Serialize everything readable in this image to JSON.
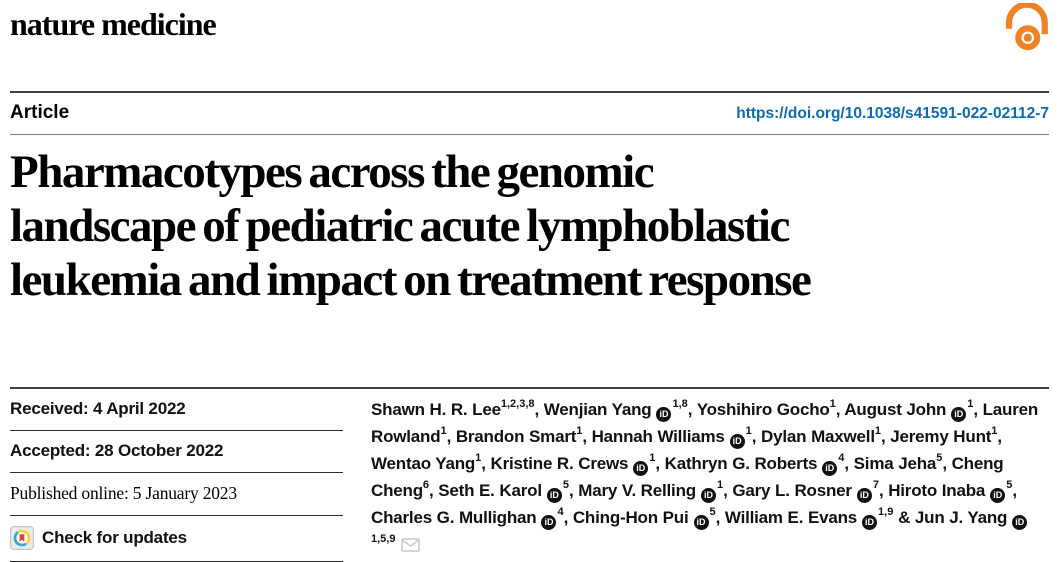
{
  "journal": "nature medicine",
  "header": {
    "article_label": "Article",
    "doi": "https://doi.org/10.1038/s41591-022-02112-7"
  },
  "title_lines": [
    "Pharmacotypes across the genomic",
    "landscape of pediatric acute lymphoblastic",
    "leukemia and impact on treatment response"
  ],
  "title_full": "Pharmacotypes across the genomic landscape of pediatric acute lymphoblastic leukemia and impact on treatment response",
  "dates": {
    "received": "Received: 4 April 2022",
    "accepted": "Accepted: 28 October 2022",
    "published": "Published online: 5 January 2023"
  },
  "check_updates_label": "Check for updates",
  "icons": {
    "open_access": "open-access-lock",
    "orcid_label": "iD",
    "crossmark": "crossmark-circle-bookmark",
    "email": "envelope"
  },
  "colors": {
    "open_access_orange": "#f08124",
    "link_blue": "#0c6bb3",
    "orcid_black": "#101010",
    "crossmark_blue": "#3aa7cf",
    "crossmark_yellow": "#fdd039",
    "crossmark_red": "#d8433c"
  },
  "authors": [
    {
      "name": "Shawn H. R. Lee",
      "sup": "1,2,3,8",
      "orcid": false
    },
    {
      "name": "Wenjian Yang",
      "sup": "1,8",
      "orcid": true
    },
    {
      "name": "Yoshihiro Gocho",
      "sup": "1",
      "orcid": false
    },
    {
      "name": "August John",
      "sup": "1",
      "orcid": true
    },
    {
      "name": "Lauren Rowland",
      "sup": "1",
      "orcid": false
    },
    {
      "name": "Brandon Smart",
      "sup": "1",
      "orcid": false
    },
    {
      "name": "Hannah Williams",
      "sup": "1",
      "orcid": true
    },
    {
      "name": "Dylan Maxwell",
      "sup": "1",
      "orcid": false
    },
    {
      "name": "Jeremy Hunt",
      "sup": "1",
      "orcid": false
    },
    {
      "name": "Wentao Yang",
      "sup": "1",
      "orcid": false
    },
    {
      "name": "Kristine R. Crews",
      "sup": "1",
      "orcid": true
    },
    {
      "name": "Kathryn G. Roberts",
      "sup": "4",
      "orcid": true
    },
    {
      "name": "Sima Jeha",
      "sup": "5",
      "orcid": false
    },
    {
      "name": "Cheng Cheng",
      "sup": "6",
      "orcid": false
    },
    {
      "name": "Seth E. Karol",
      "sup": "5",
      "orcid": true
    },
    {
      "name": "Mary V. Relling",
      "sup": "1",
      "orcid": true
    },
    {
      "name": "Gary L. Rosner",
      "sup": "7",
      "orcid": true
    },
    {
      "name": "Hiroto Inaba",
      "sup": "5",
      "orcid": true
    },
    {
      "name": "Charles G. Mullighan",
      "sup": "4",
      "orcid": true
    },
    {
      "name": "Ching-Hon Pui",
      "sup": "5",
      "orcid": true
    },
    {
      "name": "William E. Evans",
      "sup": "1,9",
      "orcid": true
    },
    {
      "name": "Jun J. Yang",
      "sup": "1,5,9",
      "orcid": true,
      "amp": true,
      "email": true
    }
  ]
}
